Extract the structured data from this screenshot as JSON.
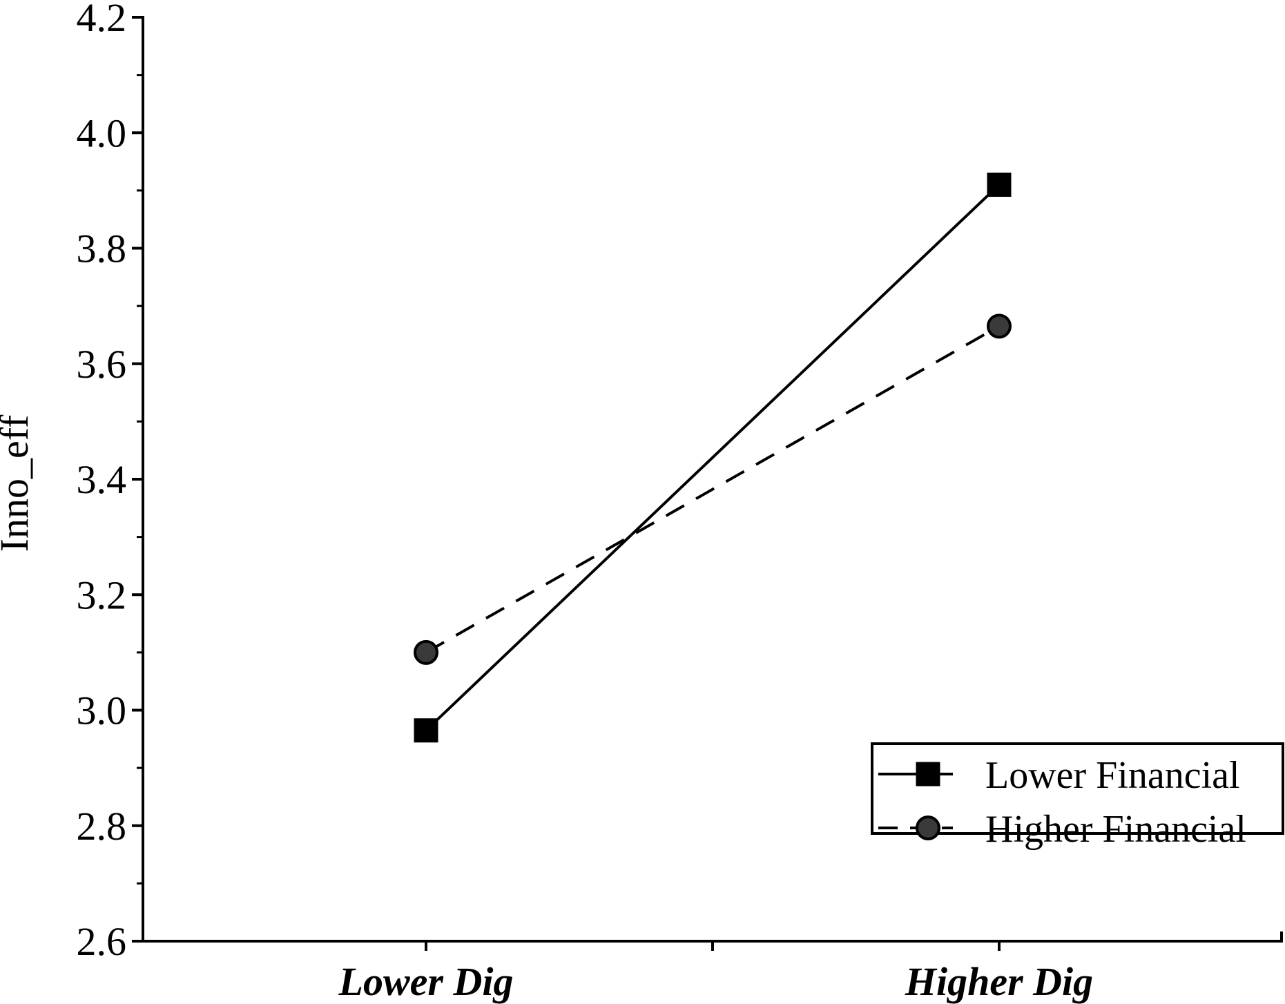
{
  "chart_data": {
    "type": "line",
    "categories": [
      "Lower Dig",
      "Higher Dig"
    ],
    "series": [
      {
        "name": "Lower Financial",
        "values": [
          2.965,
          3.91
        ],
        "marker": "square",
        "line_style": "solid",
        "color": "#000000"
      },
      {
        "name": "Higher Financial",
        "values": [
          3.1,
          3.665
        ],
        "marker": "circle",
        "line_style": "dashed",
        "color": "#3a3a3a"
      }
    ],
    "title": "",
    "xlabel": "",
    "ylabel": "Inno_eff",
    "ylim": [
      2.6,
      4.2
    ],
    "yticks": [
      "2.6",
      "2.8",
      "3.0",
      "3.2",
      "3.4",
      "3.6",
      "3.8",
      "4.0",
      "4.2"
    ],
    "grid": false,
    "legend_position": "bottom-right"
  }
}
